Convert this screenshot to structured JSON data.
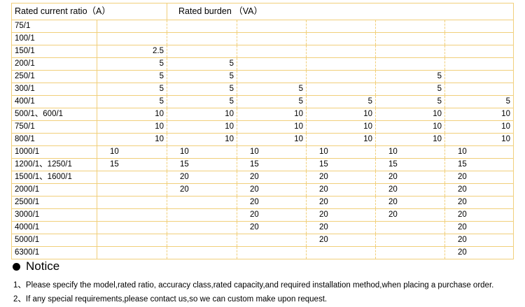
{
  "header": {
    "ratio_label": "Rated current ratio（A）",
    "burden_label": "Rated burden （VA）"
  },
  "rows": [
    {
      "ratio": "75/1",
      "values": [
        "",
        "",
        "",
        "",
        "",
        ""
      ]
    },
    {
      "ratio": "100/1",
      "values": [
        "",
        "",
        "",
        "",
        "",
        ""
      ]
    },
    {
      "ratio": "150/1",
      "values": [
        "2.5",
        "",
        "",
        "",
        "",
        ""
      ]
    },
    {
      "ratio": "200/1",
      "values": [
        "5",
        "5",
        "",
        "",
        "",
        ""
      ]
    },
    {
      "ratio": "250/1",
      "values": [
        "5",
        "5",
        "",
        "",
        "5",
        ""
      ]
    },
    {
      "ratio": "300/1",
      "values": [
        "5",
        "5",
        "5",
        "",
        "5",
        ""
      ]
    },
    {
      "ratio": "400/1",
      "values": [
        "5",
        "5",
        "5",
        "5",
        "5",
        "5"
      ]
    },
    {
      "ratio": "500/1、600/1",
      "values": [
        "10",
        "10",
        "10",
        "10",
        "10",
        "10"
      ]
    },
    {
      "ratio": "750/1",
      "values": [
        "10",
        "10",
        "10",
        "10",
        "10",
        "10"
      ]
    },
    {
      "ratio": "800/1",
      "values": [
        "10",
        "10",
        "10",
        "10",
        "10",
        "10"
      ]
    },
    {
      "ratio": "1000/1",
      "values": [
        "10",
        "10",
        "10",
        "10",
        "10",
        "10"
      ],
      "align": "left"
    },
    {
      "ratio": "1200/1、1250/1",
      "values": [
        "15",
        "15",
        "15",
        "15",
        "15",
        "15"
      ],
      "align": "left"
    },
    {
      "ratio": "1500/1、1600/1",
      "values": [
        "",
        "20",
        "20",
        "20",
        "20",
        "20"
      ],
      "align": "left"
    },
    {
      "ratio": "2000/1",
      "values": [
        "",
        "20",
        "20",
        "20",
        "20",
        "20"
      ],
      "align": "left"
    },
    {
      "ratio": "2500/1",
      "values": [
        "",
        "",
        "20",
        "20",
        "20",
        "20"
      ],
      "align": "left"
    },
    {
      "ratio": "3000/1",
      "values": [
        "",
        "",
        "20",
        "20",
        "20",
        "20"
      ],
      "align": "left"
    },
    {
      "ratio": "4000/1",
      "values": [
        "",
        "",
        "20",
        "20",
        "",
        "20"
      ],
      "align": "left"
    },
    {
      "ratio": "5000/1",
      "values": [
        "",
        "",
        "",
        "20",
        "",
        "20"
      ],
      "align": "left"
    },
    {
      "ratio": "6300/1",
      "values": [
        "",
        "",
        "",
        "",
        "",
        "20"
      ],
      "align": "left"
    }
  ],
  "notice": {
    "title": "Notice",
    "lines": [
      "1、Please specify the model,rated ratio, accuracy class,rated capacity,and required installation method,when placing a purchase order.",
      "2、If any special requirements,please contact us,so we can custom make upon request."
    ]
  },
  "colors": {
    "grid": "#f1cf7b",
    "text": "#000000"
  }
}
